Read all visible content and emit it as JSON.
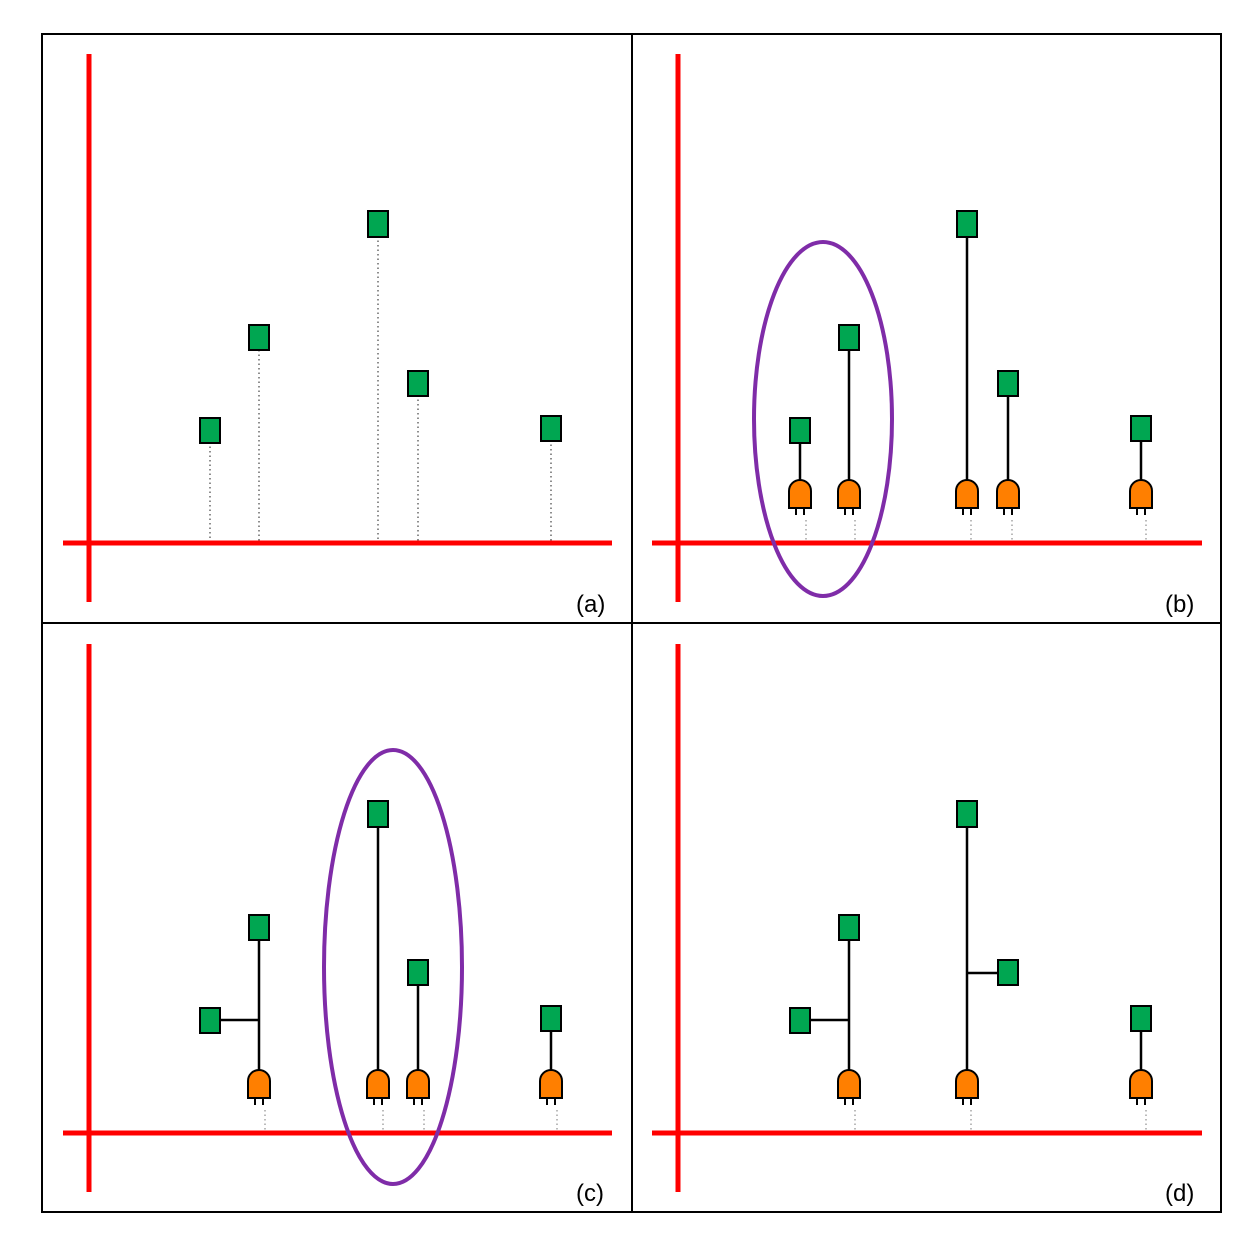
{
  "figure": {
    "panels": [
      {
        "label": "(a)"
      },
      {
        "label": "(b)"
      },
      {
        "label": "(c)"
      },
      {
        "label": "(d)"
      }
    ]
  },
  "colors": {
    "axis": "#ff0000",
    "node": "#00a651",
    "plug": "#ff7f00",
    "ellipse": "#7f2ca8",
    "line": "#000000",
    "frame": "#000000"
  },
  "icons": {
    "node": "green-square-icon",
    "plug": "orange-plug-icon"
  }
}
